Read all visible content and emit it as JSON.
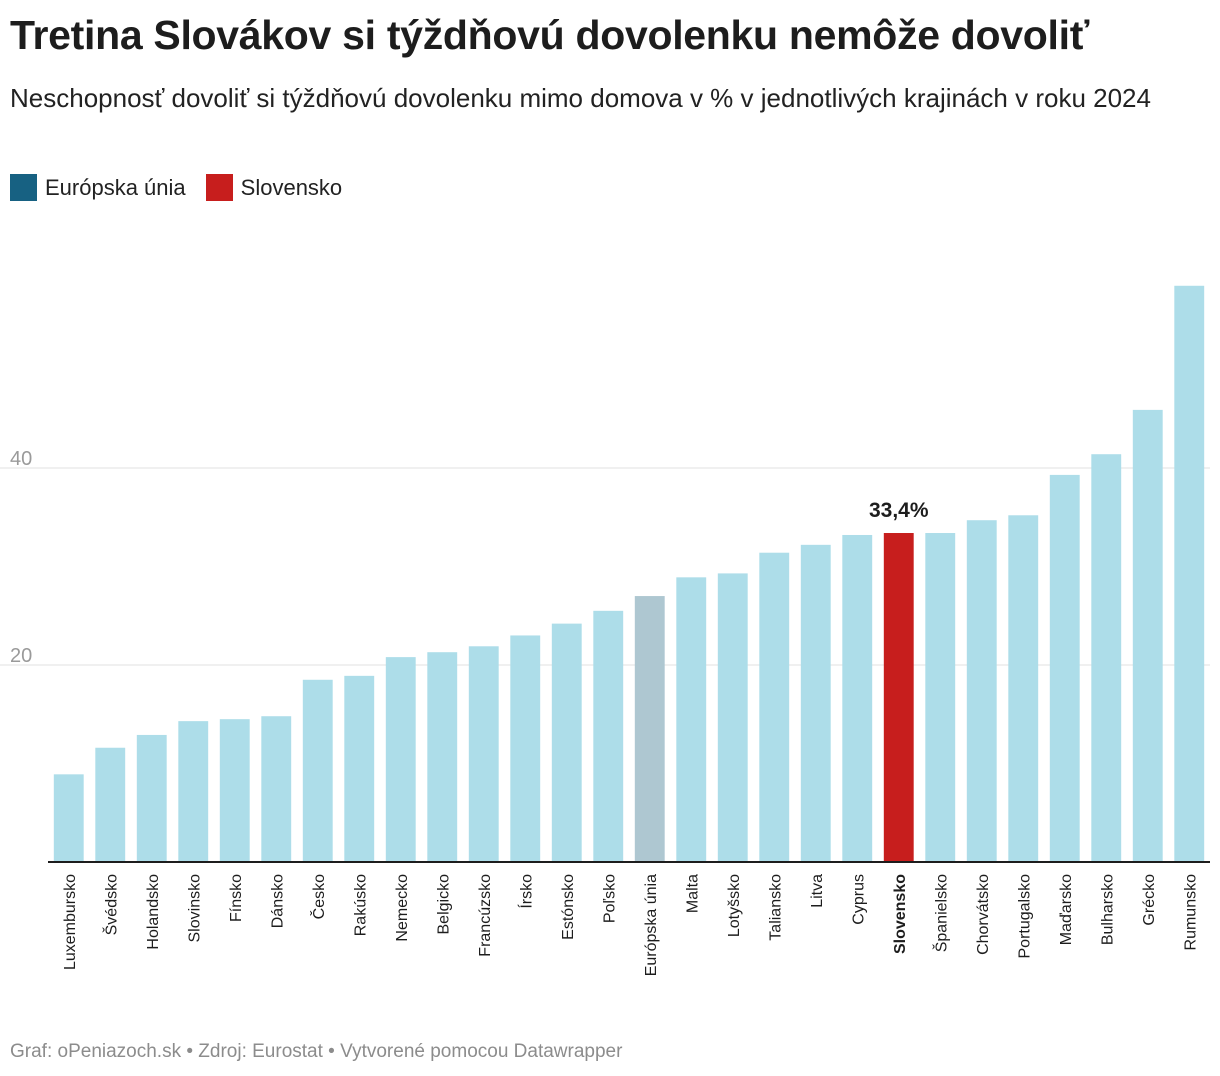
{
  "title": "Tretina Slovákov si týždňovú dovolenku nemôže dovoliť",
  "subtitle": "Neschopnosť dovoliť si týždňovú dovolenku mimo domova v % v jednotlivých krajinách v roku 2024",
  "legend": [
    {
      "label": "Európska únia",
      "color": "#176182"
    },
    {
      "label": "Slovensko",
      "color": "#c71e1d"
    }
  ],
  "footer": "Graf: oPeniazoch.sk • Zdroj: Eurostat • Vytvorené pomocou Datawrapper",
  "colors": {
    "default": "#addde9",
    "eu": "#aec7d1",
    "highlight": "#c71e1d"
  },
  "chart_data": {
    "type": "bar",
    "title": "Tretina Slovákov si týždňovú dovolenku nemôže dovoliť",
    "xlabel": "",
    "ylabel": "",
    "ylim": [
      0,
      60
    ],
    "yticks": [
      20,
      40
    ],
    "grid": true,
    "categories": [
      "Luxembursko",
      "Švédsko",
      "Holandsko",
      "Slovinsko",
      "Fínsko",
      "Dánsko",
      "Česko",
      "Rakúsko",
      "Nemecko",
      "Belgicko",
      "Francúzsko",
      "Írsko",
      "Estónsko",
      "Poľsko",
      "Európska únia",
      "Malta",
      "Lotyšsko",
      "Taliansko",
      "Litva",
      "Cyprus",
      "Slovensko",
      "Španielsko",
      "Chorvátsko",
      "Portugalsko",
      "Maďarsko",
      "Bulharsko",
      "Grécko",
      "Rumunsko"
    ],
    "values": [
      8.9,
      11.6,
      12.9,
      14.3,
      14.5,
      14.8,
      18.5,
      18.9,
      20.8,
      21.3,
      21.9,
      23.0,
      24.2,
      25.5,
      27.0,
      28.9,
      29.3,
      31.4,
      32.2,
      33.2,
      33.4,
      33.4,
      34.7,
      35.2,
      39.3,
      41.4,
      45.9,
      58.5
    ],
    "highlight": "Slovensko",
    "eu": "Európska únia",
    "annotations": [
      {
        "category": "Slovensko",
        "text": "33,4%"
      }
    ]
  }
}
